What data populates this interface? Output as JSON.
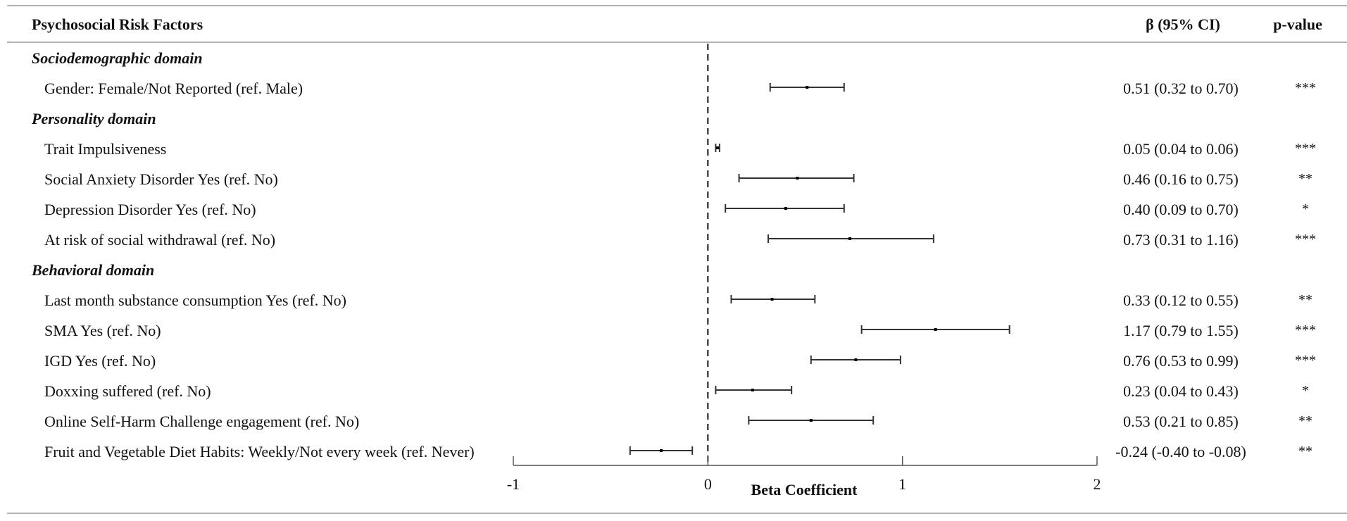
{
  "headers": {
    "factors": "Psychosocial Risk Factors",
    "beta": "β (95% CI)",
    "pvalue": "p-value"
  },
  "rows": [
    {
      "kind": "domain",
      "label": "Sociodemographic domain"
    },
    {
      "kind": "item",
      "label": "Gender: Female/Not Reported (ref. Male)",
      "ci_text": "0.51 (0.32 to 0.70)",
      "p": "***"
    },
    {
      "kind": "domain",
      "label": "Personality domain"
    },
    {
      "kind": "item",
      "label": "Trait Impulsiveness",
      "ci_text": "0.05 (0.04 to 0.06)",
      "p": "***"
    },
    {
      "kind": "item",
      "label": "Social Anxiety Disorder Yes (ref. No)",
      "ci_text": "0.46 (0.16 to 0.75)",
      "p": "**"
    },
    {
      "kind": "item",
      "label": "Depression Disorder Yes (ref. No)",
      "ci_text": "0.40 (0.09 to 0.70)",
      "p": "*"
    },
    {
      "kind": "item",
      "label": "At risk of social withdrawal (ref. No)",
      "ci_text": "0.73 (0.31 to 1.16)",
      "p": "***"
    },
    {
      "kind": "domain",
      "label": "Behavioral domain"
    },
    {
      "kind": "item",
      "label": "Last month substance consumption Yes (ref. No)",
      "ci_text": "0.33 (0.12 to 0.55)",
      "p": "**"
    },
    {
      "kind": "item",
      "label": "SMA Yes (ref. No)",
      "ci_text": "1.17 (0.79 to 1.55)",
      "p": "***"
    },
    {
      "kind": "item",
      "label": "IGD Yes (ref. No)",
      "ci_text": "0.76 (0.53 to 0.99)",
      "p": "***"
    },
    {
      "kind": "item",
      "label": "Doxxing suffered  (ref. No)",
      "ci_text": "0.23 (0.04 to 0.43)",
      "p": "*"
    },
    {
      "kind": "item",
      "label": "Online Self-Harm Challenge engagement (ref. No)",
      "ci_text": "0.53 (0.21 to 0.85)",
      "p": "**"
    },
    {
      "kind": "item",
      "label": "Fruit and Vegetable Diet Habits: Weekly/Not every week (ref. Never)",
      "ci_text": "-0.24 (-0.40 to -0.08)",
      "p": "**"
    }
  ],
  "chart_data": {
    "type": "forest",
    "xlabel": "Beta Coefficient",
    "xlim": [
      -1,
      2
    ],
    "xticks": [
      -1,
      0,
      1,
      2
    ],
    "xtick_labels": [
      "-1",
      "0",
      "1",
      "2"
    ],
    "reference_line": 0,
    "points": [
      {
        "label": "Gender: Female/Not Reported (ref. Male)",
        "beta": 0.51,
        "lower": 0.32,
        "upper": 0.7
      },
      {
        "label": "Trait Impulsiveness",
        "beta": 0.05,
        "lower": 0.04,
        "upper": 0.06
      },
      {
        "label": "Social Anxiety Disorder Yes (ref. No)",
        "beta": 0.46,
        "lower": 0.16,
        "upper": 0.75
      },
      {
        "label": "Depression Disorder Yes (ref. No)",
        "beta": 0.4,
        "lower": 0.09,
        "upper": 0.7
      },
      {
        "label": "At risk of social withdrawal (ref. No)",
        "beta": 0.73,
        "lower": 0.31,
        "upper": 1.16
      },
      {
        "label": "Last month substance consumption Yes (ref. No)",
        "beta": 0.33,
        "lower": 0.12,
        "upper": 0.55
      },
      {
        "label": "SMA Yes (ref. No)",
        "beta": 1.17,
        "lower": 0.79,
        "upper": 1.55
      },
      {
        "label": "IGD Yes (ref. No)",
        "beta": 0.76,
        "lower": 0.53,
        "upper": 0.99
      },
      {
        "label": "Doxxing suffered  (ref. No)",
        "beta": 0.23,
        "lower": 0.04,
        "upper": 0.43
      },
      {
        "label": "Online Self-Harm Challenge engagement (ref. No)",
        "beta": 0.53,
        "lower": 0.21,
        "upper": 0.85
      },
      {
        "label": "Fruit and Vegetable Diet Habits: Weekly/Not every week (ref. Never)",
        "beta": -0.24,
        "lower": -0.4,
        "upper": -0.08
      }
    ],
    "colors": {
      "lines": "#333333",
      "text": "#111111"
    }
  }
}
